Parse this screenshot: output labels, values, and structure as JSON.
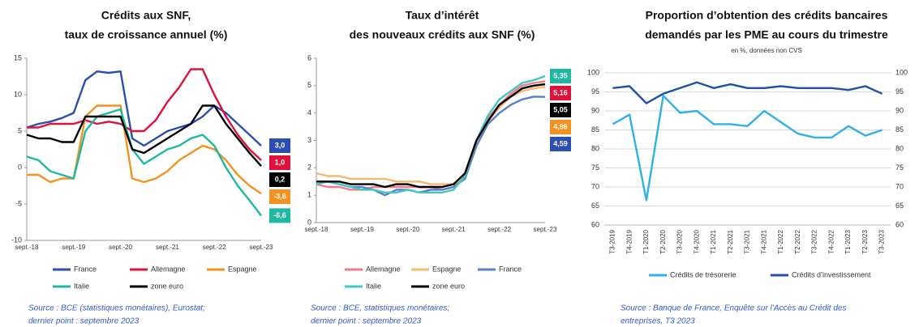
{
  "chart_data": [
    {
      "type": "line",
      "title": [
        "Crédits aux SNF,",
        "taux de croissance annuel (%)"
      ],
      "categories": [
        "sept.-18",
        null,
        null,
        null,
        "sept.-19",
        null,
        null,
        null,
        "sept.-20",
        null,
        null,
        null,
        "sept.-21",
        null,
        null,
        null,
        "sept.-22",
        null,
        null,
        null,
        "sept.-23"
      ],
      "ylim": [
        -10,
        15
      ],
      "yticks": [
        -10,
        -5,
        0,
        5,
        10,
        15
      ],
      "grid": false,
      "series": [
        {
          "name": "France",
          "color": "#2a4fb0",
          "values": [
            5.5,
            6,
            6.3,
            6.8,
            7.5,
            12,
            13.2,
            13,
            13.2,
            4,
            3,
            4,
            5,
            5.5,
            6,
            7,
            8.5,
            7.5,
            6,
            4.5,
            3.0
          ],
          "end_label": "3,0"
        },
        {
          "name": "Allemagne",
          "color": "#e0103a",
          "values": [
            5.5,
            5.5,
            6,
            6,
            6,
            6.5,
            6,
            6.3,
            6,
            5,
            5,
            6.5,
            9,
            11,
            13.5,
            13.5,
            10,
            7,
            4.5,
            2.5,
            1.0
          ],
          "end_label": "1,0"
        },
        {
          "name": "Espagne",
          "color": "#f39220",
          "values": [
            -1,
            -1,
            -2,
            -1.5,
            -1.5,
            7,
            8.5,
            8.5,
            8.5,
            -1.5,
            -2,
            -1.5,
            -0.5,
            1,
            2,
            3,
            2.5,
            1,
            -1,
            -2.5,
            -3.6
          ],
          "end_label": "-3,6"
        },
        {
          "name": "Italie",
          "color": "#1fb8a0",
          "values": [
            1.5,
            1,
            -0.5,
            -1,
            -1.5,
            5,
            7,
            7.5,
            8,
            2.5,
            0.5,
            1.5,
            2.5,
            3,
            4,
            4.5,
            3,
            0,
            -2.5,
            -4.5,
            -6.6
          ],
          "end_label": "-6,6"
        },
        {
          "name": "zone euro",
          "color": "#000000",
          "values": [
            4.5,
            4,
            4,
            3.5,
            3.5,
            7,
            7,
            7,
            7,
            2.5,
            2,
            3,
            4,
            5,
            6,
            8.5,
            8.5,
            6,
            4,
            2,
            0.2
          ],
          "end_label": "0,2"
        }
      ],
      "source": [
        "Source : BCE (statistiques monétaires), Eurostat;",
        "dernier point : septembre 2023"
      ]
    },
    {
      "type": "line",
      "title": [
        "Taux d’intérêt",
        "des nouveaux crédits aux SNF (%)"
      ],
      "categories": [
        "sept.-18",
        null,
        null,
        null,
        "sept.-19",
        null,
        null,
        null,
        "sept.-20",
        null,
        null,
        null,
        "sept.-21",
        null,
        null,
        null,
        "sept.-22",
        null,
        null,
        null,
        "sept.-23"
      ],
      "ylim": [
        0,
        6
      ],
      "yticks": [
        0,
        1,
        2,
        3,
        4,
        5,
        6
      ],
      "grid": false,
      "series": [
        {
          "name": "Allemagne",
          "color": "#f07a8a",
          "values": [
            1.4,
            1.3,
            1.3,
            1.2,
            1.2,
            1.3,
            1.3,
            1.3,
            1.3,
            1.3,
            1.3,
            1.2,
            1.3,
            1.8,
            3.0,
            3.8,
            4.3,
            4.7,
            5.0,
            5.1,
            5.16
          ],
          "end_label": "5,16",
          "label_color": "#e0103a"
        },
        {
          "name": "Espagne",
          "color": "#f7b870",
          "values": [
            1.8,
            1.7,
            1.7,
            1.6,
            1.6,
            1.6,
            1.6,
            1.5,
            1.5,
            1.5,
            1.4,
            1.4,
            1.4,
            1.7,
            2.8,
            3.7,
            4.2,
            4.6,
            4.8,
            4.9,
            4.96
          ],
          "end_label": "4,96",
          "label_color": "#f39220"
        },
        {
          "name": "France",
          "color": "#5a7fc8",
          "values": [
            1.5,
            1.5,
            1.4,
            1.3,
            1.3,
            1.2,
            1.0,
            1.2,
            1.2,
            1.1,
            1.2,
            1.2,
            1.3,
            1.6,
            2.8,
            3.6,
            4.0,
            4.3,
            4.5,
            4.6,
            4.59
          ],
          "end_label": "4,59",
          "label_color": "#2a4fb0"
        },
        {
          "name": "Italie",
          "color": "#40c8c0",
          "values": [
            1.4,
            1.5,
            1.4,
            1.3,
            1.2,
            1.2,
            1.1,
            1.1,
            1.2,
            1.1,
            1.1,
            1.1,
            1.2,
            1.7,
            3.0,
            3.9,
            4.5,
            4.8,
            5.1,
            5.2,
            5.35
          ],
          "end_label": "5,35",
          "label_color": "#1fb8a0"
        },
        {
          "name": "zone euro",
          "color": "#000000",
          "values": [
            1.5,
            1.5,
            1.5,
            1.4,
            1.4,
            1.4,
            1.3,
            1.4,
            1.4,
            1.3,
            1.3,
            1.3,
            1.4,
            1.8,
            3.0,
            3.7,
            4.3,
            4.6,
            4.9,
            5.0,
            5.05
          ],
          "end_label": "5,05",
          "label_color": "#000000"
        }
      ],
      "source": [
        "Source : BCE, statistiques monétaires;",
        "dernier point : septembre 2023"
      ]
    },
    {
      "type": "line",
      "title": [
        "Proportion d’obtention des crédits bancaires",
        "demandés par les PME au cours du trimestre"
      ],
      "subtitle": "en %, données non CVS",
      "categories": [
        "T3-2019",
        "T4-2019",
        "T1-2020",
        "T2-2020",
        "T3-2020",
        "T4-2020",
        "T1-2021",
        "T2-2021",
        "T3-2021",
        "T4-2021",
        "T1-2022",
        "T2-2022",
        "T3-2022",
        "T4-2022",
        "T1-2023",
        "T2-2023",
        "T3-2023"
      ],
      "ylim": [
        60,
        100
      ],
      "yticks": [
        60,
        65,
        70,
        75,
        80,
        85,
        90,
        95,
        100
      ],
      "y2lim": [
        60,
        100
      ],
      "y2ticks": [
        60,
        65,
        70,
        75,
        80,
        85,
        90,
        95,
        100
      ],
      "grid": true,
      "series": [
        {
          "name": "Crédits de trésorerie",
          "color": "#2eb0e8",
          "values": [
            86.5,
            89,
            66.5,
            94,
            89.5,
            90,
            86.5,
            86.5,
            86,
            90,
            87,
            84,
            83,
            83,
            86,
            83.5,
            85
          ]
        },
        {
          "name": "Crédits d’investissement",
          "color": "#1f4fa8",
          "axis": "y2",
          "values": [
            96,
            96.5,
            92,
            94.5,
            96,
            97.5,
            96,
            97,
            96,
            96,
            96.5,
            96,
            96,
            96,
            95.5,
            96.5,
            94.5
          ]
        }
      ],
      "source": [
        "Source : Banque de France, Enquête sur l’Accès au Crédit des",
        "entreprises, T3 2023"
      ]
    }
  ]
}
